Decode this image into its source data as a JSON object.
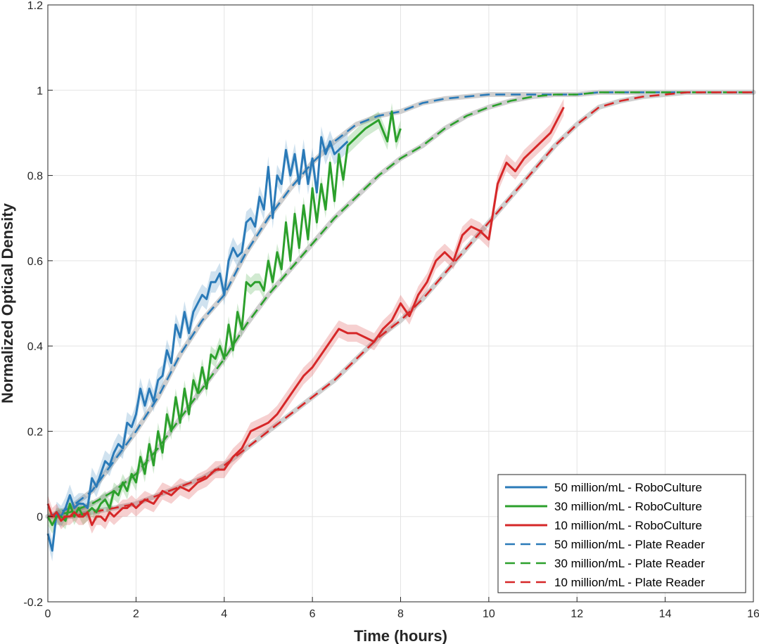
{
  "chart_data": {
    "type": "line",
    "xlabel": "Time (hours)",
    "ylabel": "Normalized Optical Density",
    "xlim": [
      0,
      16
    ],
    "ylim": [
      -0.2,
      1.2
    ],
    "xticks": [
      0,
      2,
      4,
      6,
      8,
      10,
      12,
      14,
      16
    ],
    "yticks": [
      -0.2,
      0,
      0.2,
      0.4,
      0.6,
      0.8,
      1,
      1.2
    ],
    "xtick_labels": [
      "0",
      "2",
      "4",
      "6",
      "8",
      "10",
      "12",
      "14",
      "16"
    ],
    "ytick_labels": [
      "-0.2",
      "0",
      "0.2",
      "0.4",
      "0.6",
      "0.8",
      "1",
      "1.2"
    ],
    "grid": true,
    "legend_position": "bottom-right",
    "series": [
      {
        "name": "50 million/mL - RoboCulture",
        "color": "#2a7ab8",
        "style": "solid",
        "band": 0.025,
        "x": [
          0.0,
          0.1,
          0.2,
          0.3,
          0.4,
          0.5,
          0.6,
          0.7,
          0.8,
          0.9,
          1.0,
          1.1,
          1.2,
          1.3,
          1.4,
          1.5,
          1.6,
          1.7,
          1.8,
          1.9,
          2.0,
          2.1,
          2.2,
          2.3,
          2.4,
          2.5,
          2.6,
          2.7,
          2.8,
          2.9,
          3.0,
          3.1,
          3.2,
          3.3,
          3.4,
          3.5,
          3.6,
          3.7,
          3.8,
          3.9,
          4.0,
          4.1,
          4.2,
          4.3,
          4.4,
          4.5,
          4.6,
          4.7,
          4.8,
          4.9,
          5.0,
          5.1,
          5.2,
          5.3,
          5.4,
          5.5,
          5.6,
          5.7,
          5.8,
          5.9,
          6.0,
          6.1,
          6.2,
          6.3,
          6.4,
          6.5,
          6.6,
          6.7,
          6.8
        ],
        "y": [
          -0.04,
          -0.08,
          0.01,
          0.0,
          0.02,
          0.05,
          0.02,
          0.03,
          0.03,
          0.02,
          0.09,
          0.07,
          0.1,
          0.13,
          0.12,
          0.15,
          0.17,
          0.16,
          0.22,
          0.21,
          0.24,
          0.3,
          0.26,
          0.3,
          0.27,
          0.32,
          0.33,
          0.39,
          0.36,
          0.45,
          0.42,
          0.48,
          0.43,
          0.48,
          0.5,
          0.52,
          0.51,
          0.55,
          0.55,
          0.57,
          0.52,
          0.6,
          0.63,
          0.61,
          0.62,
          0.69,
          0.7,
          0.68,
          0.75,
          0.72,
          0.82,
          0.7,
          0.8,
          0.78,
          0.86,
          0.8,
          0.85,
          0.78,
          0.86,
          0.78,
          0.84,
          0.76,
          0.89,
          0.85,
          0.88,
          0.85,
          0.86,
          0.87,
          0.88
        ]
      },
      {
        "name": "30 million/mL - RoboCulture",
        "color": "#2ca02c",
        "style": "solid",
        "band": 0.02,
        "x": [
          0.0,
          0.1,
          0.2,
          0.3,
          0.4,
          0.5,
          0.6,
          0.7,
          0.8,
          0.9,
          1.0,
          1.1,
          1.2,
          1.3,
          1.4,
          1.5,
          1.6,
          1.7,
          1.8,
          1.9,
          2.0,
          2.1,
          2.2,
          2.3,
          2.4,
          2.5,
          2.6,
          2.7,
          2.8,
          2.9,
          3.0,
          3.1,
          3.2,
          3.3,
          3.4,
          3.5,
          3.6,
          3.7,
          3.8,
          3.9,
          4.0,
          4.1,
          4.2,
          4.3,
          4.4,
          4.5,
          4.6,
          4.7,
          4.8,
          4.9,
          5.0,
          5.1,
          5.2,
          5.3,
          5.4,
          5.5,
          5.6,
          5.7,
          5.8,
          5.9,
          6.0,
          6.1,
          6.2,
          6.3,
          6.4,
          6.5,
          6.6,
          6.7,
          6.8,
          7.0,
          7.2,
          7.5,
          7.7,
          7.8,
          7.9,
          8.0
        ],
        "y": [
          0.0,
          -0.02,
          0.0,
          0.0,
          -0.01,
          0.03,
          0.0,
          0.02,
          0.0,
          0.01,
          0.02,
          0.01,
          0.03,
          0.04,
          0.02,
          0.06,
          0.05,
          0.08,
          0.06,
          0.1,
          0.08,
          0.14,
          0.1,
          0.17,
          0.12,
          0.2,
          0.15,
          0.24,
          0.2,
          0.28,
          0.22,
          0.3,
          0.24,
          0.32,
          0.29,
          0.35,
          0.3,
          0.38,
          0.37,
          0.4,
          0.37,
          0.45,
          0.39,
          0.48,
          0.44,
          0.55,
          0.54,
          0.55,
          0.55,
          0.53,
          0.6,
          0.55,
          0.62,
          0.58,
          0.69,
          0.6,
          0.71,
          0.63,
          0.73,
          0.65,
          0.77,
          0.69,
          0.78,
          0.72,
          0.83,
          0.74,
          0.85,
          0.79,
          0.87,
          0.89,
          0.91,
          0.93,
          0.88,
          0.95,
          0.88,
          0.91
        ]
      },
      {
        "name": "10 million/mL - RoboCulture",
        "color": "#d62728",
        "style": "solid",
        "band": 0.02,
        "x": [
          0.0,
          0.1,
          0.2,
          0.3,
          0.4,
          0.5,
          0.6,
          0.7,
          0.8,
          0.9,
          1.0,
          1.1,
          1.2,
          1.3,
          1.4,
          1.5,
          1.6,
          1.7,
          1.8,
          1.9,
          2.0,
          2.2,
          2.4,
          2.6,
          2.8,
          3.0,
          3.2,
          3.4,
          3.6,
          3.8,
          4.0,
          4.2,
          4.4,
          4.6,
          4.8,
          5.0,
          5.2,
          5.4,
          5.6,
          5.8,
          6.0,
          6.2,
          6.4,
          6.6,
          6.8,
          7.0,
          7.2,
          7.4,
          7.6,
          7.8,
          8.0,
          8.2,
          8.4,
          8.6,
          8.8,
          9.0,
          9.2,
          9.4,
          9.6,
          9.8,
          10.0,
          10.2,
          10.4,
          10.6,
          10.8,
          11.0,
          11.2,
          11.4,
          11.6,
          11.7
        ],
        "y": [
          0.03,
          0.0,
          0.01,
          -0.01,
          0.0,
          0.0,
          0.01,
          0.0,
          0.0,
          0.01,
          -0.02,
          0.0,
          0.0,
          -0.01,
          0.01,
          0.0,
          0.01,
          0.02,
          0.02,
          0.03,
          0.02,
          0.04,
          0.03,
          0.06,
          0.05,
          0.07,
          0.06,
          0.08,
          0.09,
          0.11,
          0.11,
          0.14,
          0.16,
          0.2,
          0.21,
          0.22,
          0.24,
          0.27,
          0.3,
          0.33,
          0.35,
          0.38,
          0.41,
          0.44,
          0.43,
          0.43,
          0.42,
          0.41,
          0.44,
          0.46,
          0.5,
          0.47,
          0.52,
          0.55,
          0.6,
          0.62,
          0.6,
          0.66,
          0.68,
          0.67,
          0.65,
          0.78,
          0.83,
          0.81,
          0.84,
          0.86,
          0.88,
          0.9,
          0.94,
          0.96
        ]
      },
      {
        "name": "50 million/mL - Plate Reader",
        "color": "#2a7ab8",
        "style": "dashed",
        "x": [
          0.0,
          0.5,
          1.0,
          1.5,
          2.0,
          2.5,
          3.0,
          3.5,
          4.0,
          4.5,
          5.0,
          5.5,
          6.0,
          6.5,
          7.0,
          7.5,
          8.0,
          8.5,
          9.0,
          9.5,
          10.0,
          10.5,
          11.0,
          11.5,
          12.0,
          12.5,
          13.0,
          13.5,
          14.0,
          14.5,
          15.0,
          15.5,
          16.0
        ],
        "y": [
          0.0,
          0.02,
          0.06,
          0.13,
          0.2,
          0.28,
          0.38,
          0.46,
          0.52,
          0.62,
          0.7,
          0.77,
          0.83,
          0.88,
          0.92,
          0.94,
          0.95,
          0.97,
          0.98,
          0.985,
          0.99,
          0.99,
          0.99,
          0.99,
          0.99,
          0.995,
          0.995,
          0.995,
          0.995,
          0.995,
          0.995,
          0.995,
          0.995
        ]
      },
      {
        "name": "30 million/mL - Plate Reader",
        "color": "#2ca02c",
        "style": "dashed",
        "x": [
          0.0,
          0.5,
          1.0,
          1.5,
          2.0,
          2.5,
          3.0,
          3.5,
          4.0,
          4.5,
          5.0,
          5.5,
          6.0,
          6.5,
          7.0,
          7.5,
          8.0,
          8.5,
          9.0,
          9.5,
          10.0,
          10.5,
          11.0,
          11.5,
          12.0,
          12.5,
          13.0,
          13.5,
          14.0,
          14.5,
          15.0,
          15.5,
          16.0
        ],
        "y": [
          0.0,
          0.01,
          0.03,
          0.06,
          0.1,
          0.16,
          0.23,
          0.3,
          0.37,
          0.45,
          0.52,
          0.58,
          0.64,
          0.7,
          0.75,
          0.8,
          0.84,
          0.87,
          0.91,
          0.94,
          0.96,
          0.975,
          0.985,
          0.99,
          0.99,
          0.995,
          0.995,
          0.995,
          0.995,
          0.995,
          0.995,
          0.995,
          0.995
        ]
      },
      {
        "name": "10 million/mL - Plate Reader",
        "color": "#d62728",
        "style": "dashed",
        "x": [
          0.0,
          0.5,
          1.0,
          1.5,
          2.0,
          2.5,
          3.0,
          3.5,
          4.0,
          4.5,
          5.0,
          5.5,
          6.0,
          6.5,
          7.0,
          7.5,
          8.0,
          8.5,
          9.0,
          9.5,
          10.0,
          10.5,
          11.0,
          11.5,
          12.0,
          12.5,
          13.0,
          13.5,
          14.0,
          14.5,
          15.0,
          15.5,
          16.0
        ],
        "y": [
          0.0,
          0.0,
          0.01,
          0.02,
          0.03,
          0.05,
          0.07,
          0.09,
          0.12,
          0.16,
          0.2,
          0.24,
          0.28,
          0.32,
          0.37,
          0.42,
          0.46,
          0.51,
          0.57,
          0.63,
          0.69,
          0.75,
          0.81,
          0.87,
          0.92,
          0.96,
          0.975,
          0.985,
          0.99,
          0.995,
          0.995,
          0.995,
          0.995
        ]
      }
    ]
  }
}
